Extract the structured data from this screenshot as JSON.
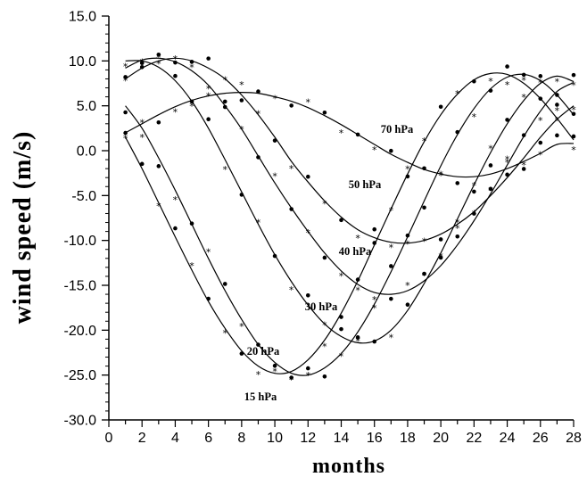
{
  "chart_data": {
    "type": "line",
    "title": "",
    "xlabel": "months",
    "ylabel": "wind speed (m/s)",
    "xlim": [
      0,
      28
    ],
    "ylim": [
      -30,
      15
    ],
    "xticks": [
      0,
      1,
      2,
      3,
      4,
      5,
      6,
      7,
      8,
      9,
      10,
      11,
      12,
      13,
      14,
      15,
      16,
      17,
      18,
      19,
      20,
      21,
      22,
      23,
      24,
      25,
      26,
      27,
      28
    ],
    "xtick_labels": [
      "0",
      "2",
      "4",
      "6",
      "8",
      "10",
      "12",
      "14",
      "16",
      "18",
      "20",
      "22",
      "24",
      "26",
      "28"
    ],
    "yticks": [
      15,
      10,
      5,
      0,
      -5,
      -10,
      -15,
      -20,
      -25,
      -30
    ],
    "ytick_labels": [
      "15.0",
      "10.0",
      "5.0",
      "0.0",
      "-5.0",
      "-10.0",
      "-15.0",
      "-20.0",
      "-25.0",
      "-30.0"
    ],
    "grid": false,
    "legend": "none",
    "markers": "dots and asterisks",
    "series": [
      {
        "name": "70 hPa",
        "x": [
          1,
          2,
          3,
          4,
          5,
          6,
          7,
          8,
          9,
          10,
          11,
          12,
          13,
          14,
          15,
          16,
          17,
          18,
          19,
          20,
          21,
          22,
          23,
          24,
          25,
          26,
          27,
          28
        ],
        "values": [
          2.0,
          3.0,
          4.0,
          4.9,
          5.6,
          6.1,
          6.4,
          6.5,
          6.4,
          6.0,
          5.5,
          4.8,
          3.9,
          2.9,
          1.8,
          0.7,
          -0.4,
          -1.3,
          -2.1,
          -2.6,
          -2.9,
          -2.9,
          -2.6,
          -2.0,
          -1.2,
          -0.3,
          0.7,
          0.8
        ]
      },
      {
        "name": "50 hPa",
        "x": [
          1,
          2,
          3,
          4,
          5,
          6,
          7,
          8,
          9,
          10,
          11,
          12,
          13,
          14,
          15,
          16,
          17,
          18,
          19,
          20,
          21,
          22,
          23,
          24,
          25,
          26,
          27,
          28
        ],
        "values": [
          8.0,
          9.2,
          10.0,
          10.3,
          10.0,
          9.2,
          8.0,
          6.2,
          4.0,
          1.5,
          -1.2,
          -3.5,
          -5.6,
          -7.4,
          -8.8,
          -9.7,
          -10.2,
          -10.3,
          -10.0,
          -9.3,
          -8.2,
          -6.8,
          -5.0,
          -3.0,
          -0.8,
          1.5,
          3.5,
          5.0
        ]
      },
      {
        "name": "40 hPa",
        "x": [
          1,
          2,
          3,
          4,
          5,
          6,
          7,
          8,
          9,
          10,
          11,
          12,
          13,
          14,
          15,
          16,
          17,
          18,
          19,
          20,
          21,
          22,
          23,
          24,
          25,
          26,
          27,
          28
        ],
        "values": [
          9.2,
          10.1,
          10.3,
          9.9,
          8.9,
          7.3,
          5.0,
          2.4,
          -0.6,
          -3.6,
          -6.4,
          -9.0,
          -11.4,
          -13.4,
          -14.9,
          -15.8,
          -16.0,
          -15.6,
          -14.5,
          -12.8,
          -10.5,
          -7.8,
          -4.8,
          -1.6,
          1.6,
          4.4,
          6.6,
          7.6
        ]
      },
      {
        "name": "30 hPa",
        "x": [
          1,
          2,
          3,
          4,
          5,
          6,
          7,
          8,
          9,
          10,
          11,
          12,
          13,
          14,
          15,
          16,
          17,
          18,
          19,
          20,
          21,
          22,
          23,
          24,
          25,
          26,
          27,
          28
        ],
        "values": [
          10.0,
          10.0,
          9.3,
          7.8,
          5.5,
          2.5,
          -1.0,
          -4.6,
          -8.2,
          -11.6,
          -14.6,
          -17.2,
          -19.3,
          -20.7,
          -21.4,
          -21.2,
          -20.0,
          -17.8,
          -14.8,
          -11.4,
          -7.6,
          -3.8,
          -0.2,
          3.0,
          5.6,
          7.5,
          8.3,
          7.7
        ]
      },
      {
        "name": "20 hPa",
        "x": [
          1,
          2,
          3,
          4,
          5,
          6,
          7,
          8,
          9,
          10,
          11,
          12,
          13,
          14,
          15,
          16,
          17,
          18,
          19,
          20,
          21,
          22,
          23,
          24,
          25,
          26,
          27,
          28
        ],
        "values": [
          5.0,
          2.5,
          -0.8,
          -4.4,
          -8.2,
          -12.0,
          -15.6,
          -18.8,
          -21.6,
          -23.6,
          -24.8,
          -25.0,
          -24.2,
          -22.6,
          -20.2,
          -17.1,
          -13.5,
          -9.6,
          -5.6,
          -1.7,
          1.8,
          4.7,
          6.9,
          8.2,
          8.5,
          7.8,
          6.2,
          4.0
        ]
      },
      {
        "name": "15 hPa",
        "x": [
          1,
          2,
          3,
          4,
          5,
          6,
          7,
          8,
          9,
          10,
          11,
          12,
          13,
          14,
          15,
          16,
          17,
          18,
          19,
          20,
          21,
          22,
          23,
          24,
          25,
          26,
          27,
          28
        ],
        "values": [
          1.5,
          -2.0,
          -5.8,
          -9.6,
          -13.3,
          -16.8,
          -19.8,
          -22.3,
          -24.0,
          -24.8,
          -24.6,
          -23.3,
          -21.1,
          -18.1,
          -14.5,
          -10.5,
          -6.5,
          -2.6,
          1.0,
          4.0,
          6.3,
          7.9,
          8.6,
          8.5,
          7.5,
          5.8,
          3.6,
          1.2
        ]
      }
    ]
  }
}
